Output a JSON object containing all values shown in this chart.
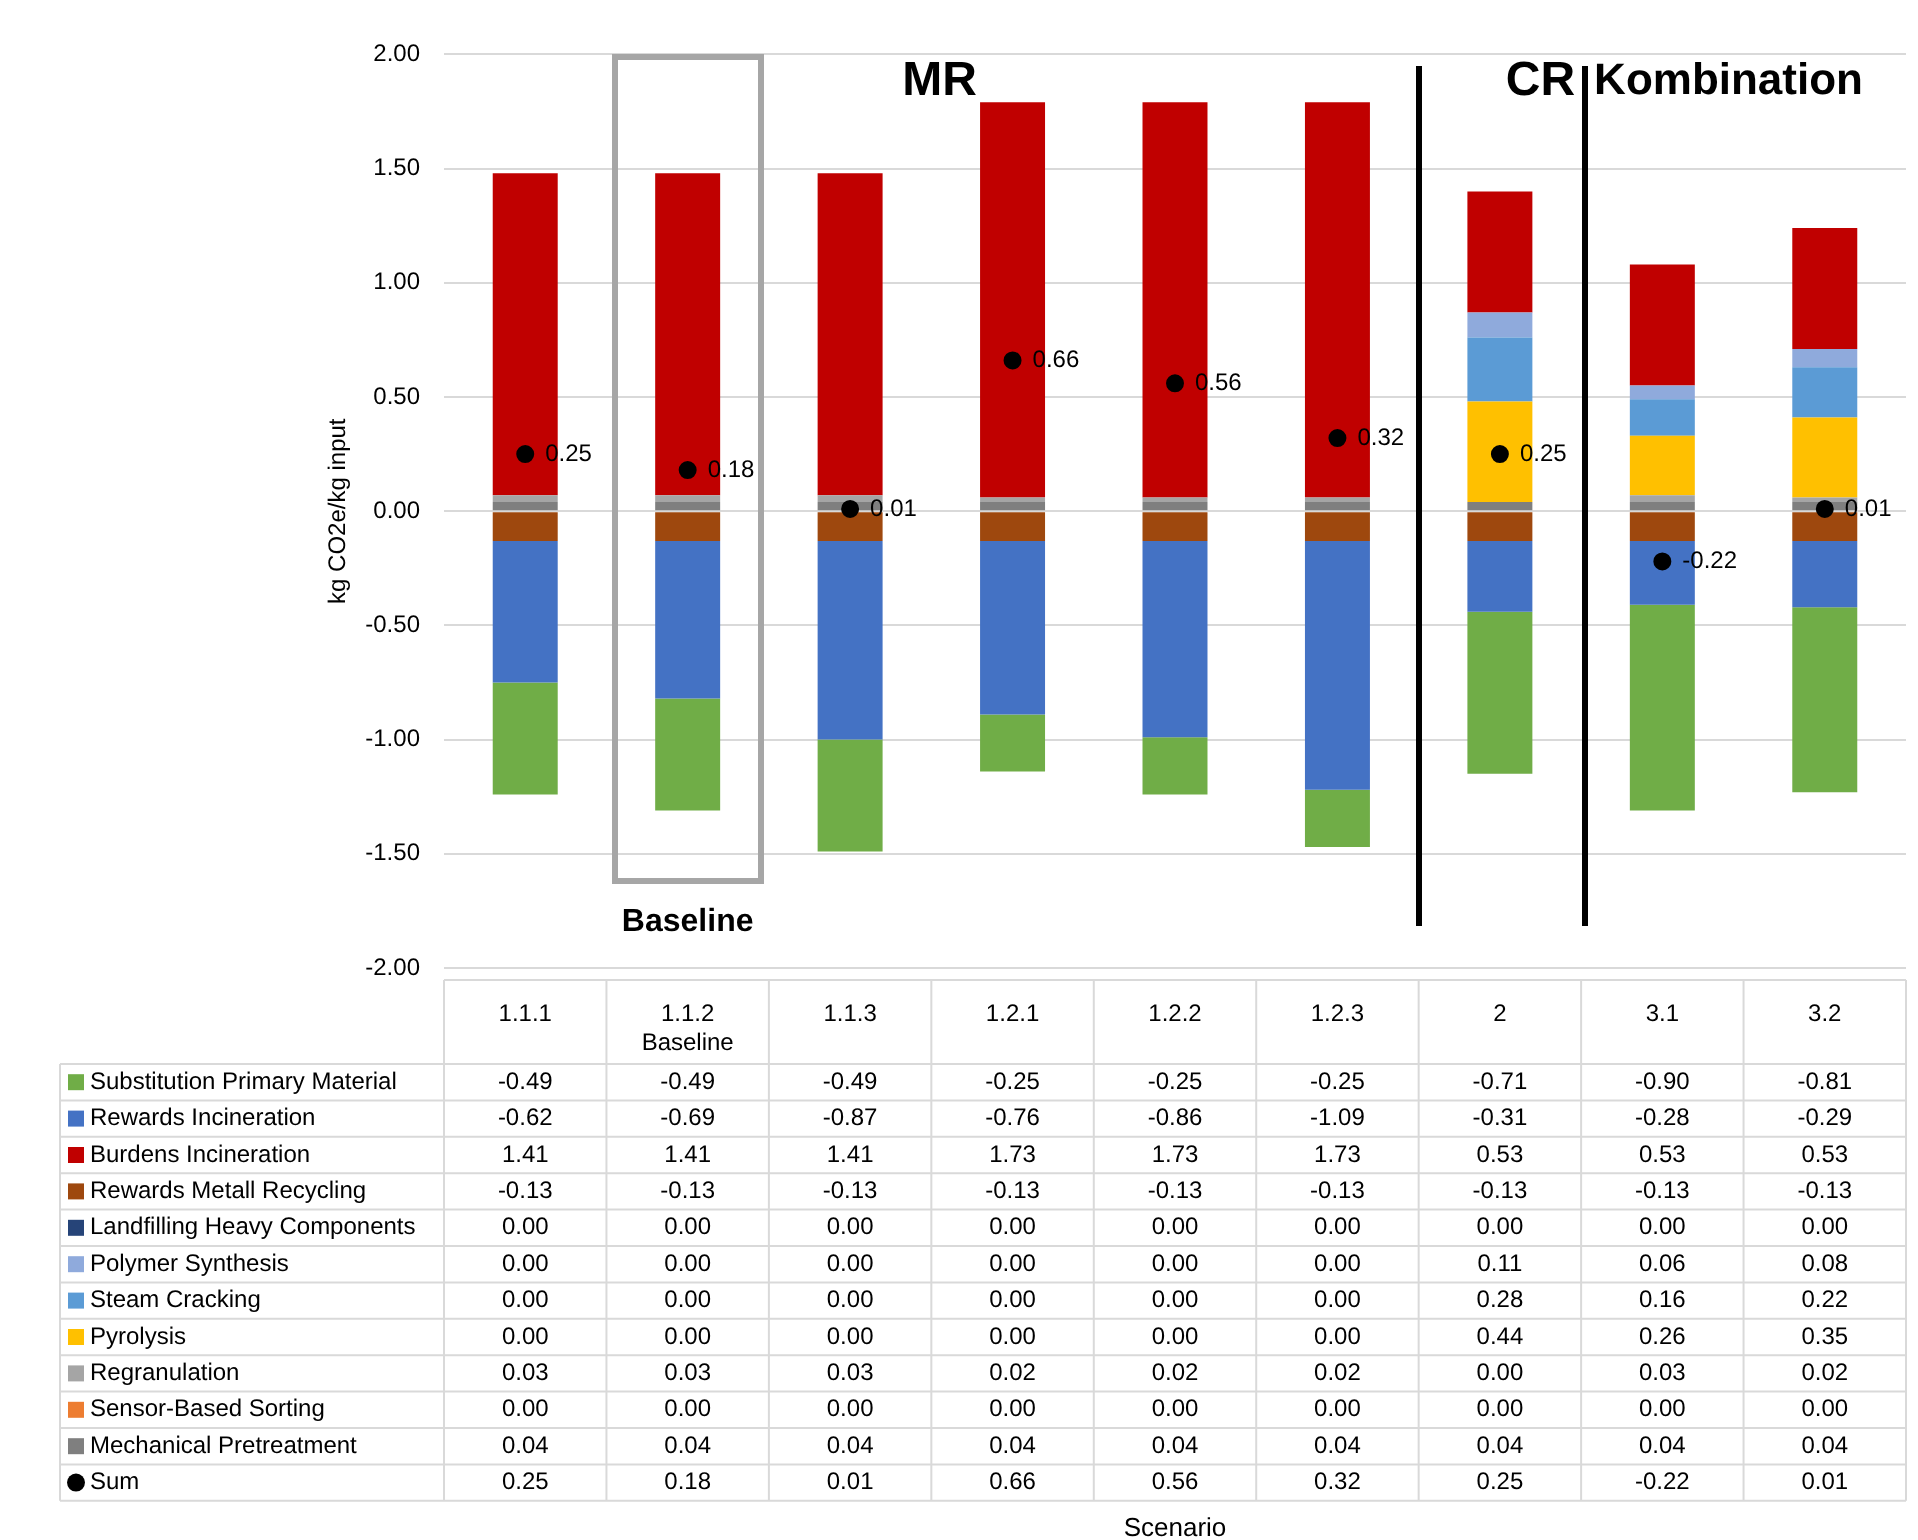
{
  "chart_data": {
    "type": "bar",
    "stacked": true,
    "ylabel": "kg CO2e/kg input",
    "categories": [
      "1.1.1",
      "1.1.2 Baseline",
      "1.1.3",
      "1.2.1",
      "1.2.2",
      "1.2.3",
      "2",
      "3.1",
      "3.2"
    ],
    "ylim": [
      -2,
      2
    ],
    "yticks": [
      {
        "value": -2,
        "label": "-2.00"
      },
      {
        "value": -1.5,
        "label": "-1.50"
      },
      {
        "value": -1,
        "label": "-1.00"
      },
      {
        "value": -0.5,
        "label": "-0.50"
      },
      {
        "value": 0,
        "label": "0.00"
      },
      {
        "value": 0.5,
        "label": "0.50"
      },
      {
        "value": 1,
        "label": "1.00"
      },
      {
        "value": 1.5,
        "label": "1.50"
      },
      {
        "value": 2,
        "label": "2.00"
      }
    ],
    "grid": "y",
    "legend": "bottom",
    "marker": "circle",
    "annotations": [
      "MR",
      "CR",
      "Kombination",
      "Baseline",
      "Scenario"
    ],
    "series": [
      {
        "name": "Mechanical Pretreatment",
        "color": "#7f7f7f",
        "values": [
          0.04,
          0.04,
          0.04,
          0.04,
          0.04,
          0.04,
          0.04,
          0.04,
          0.04
        ],
        "value_labels": [
          "0.04",
          "0.04",
          "0.04",
          "0.04",
          "0.04",
          "0.04",
          "0.04",
          "0.04",
          "0.04"
        ]
      },
      {
        "name": "Sensor-Based Sorting",
        "color": "#ed7d31",
        "values": [
          0,
          0,
          0,
          0,
          0,
          0,
          0,
          0,
          0
        ],
        "value_labels": [
          "0.00",
          "0.00",
          "0.00",
          "0.00",
          "0.00",
          "0.00",
          "0.00",
          "0.00",
          "0.00"
        ]
      },
      {
        "name": "Regranulation",
        "color": "#a5a5a5",
        "values": [
          0.03,
          0.03,
          0.03,
          0.02,
          0.02,
          0.02,
          0,
          0.03,
          0.02
        ],
        "value_labels": [
          "0.03",
          "0.03",
          "0.03",
          "0.02",
          "0.02",
          "0.02",
          "0.00",
          "0.03",
          "0.02"
        ]
      },
      {
        "name": "Pyrolysis",
        "color": "#ffc000",
        "values": [
          0,
          0,
          0,
          0,
          0,
          0,
          0.44,
          0.26,
          0.35
        ],
        "value_labels": [
          "0.00",
          "0.00",
          "0.00",
          "0.00",
          "0.00",
          "0.00",
          "0.44",
          "0.26",
          "0.35"
        ]
      },
      {
        "name": "Steam Cracking",
        "color": "#5b9bd5",
        "values": [
          0,
          0,
          0,
          0,
          0,
          0,
          0.28,
          0.16,
          0.22
        ],
        "value_labels": [
          "0.00",
          "0.00",
          "0.00",
          "0.00",
          "0.00",
          "0.00",
          "0.28",
          "0.16",
          "0.22"
        ]
      },
      {
        "name": "Polymer Synthesis",
        "color": "#8faadc",
        "values": [
          0,
          0,
          0,
          0,
          0,
          0,
          0.11,
          0.06,
          0.08
        ],
        "value_labels": [
          "0.00",
          "0.00",
          "0.00",
          "0.00",
          "0.00",
          "0.00",
          "0.11",
          "0.06",
          "0.08"
        ]
      },
      {
        "name": "Landfilling Heavy Components",
        "color": "#264478",
        "values": [
          0,
          0,
          0,
          0,
          0,
          0,
          0,
          0,
          0
        ],
        "value_labels": [
          "0.00",
          "0.00",
          "0.00",
          "0.00",
          "0.00",
          "0.00",
          "0.00",
          "0.00",
          "0.00"
        ]
      },
      {
        "name": "Rewards Metall Recycling",
        "color": "#9e480e",
        "values": [
          -0.13,
          -0.13,
          -0.13,
          -0.13,
          -0.13,
          -0.13,
          -0.13,
          -0.13,
          -0.13
        ],
        "value_labels": [
          "-0.13",
          "-0.13",
          "-0.13",
          "-0.13",
          "-0.13",
          "-0.13",
          "-0.13",
          "-0.13",
          "-0.13"
        ]
      },
      {
        "name": "Burdens Incineration",
        "color": "#c00000",
        "values": [
          1.41,
          1.41,
          1.41,
          1.73,
          1.73,
          1.73,
          0.53,
          0.53,
          0.53
        ],
        "value_labels": [
          "1.41",
          "1.41",
          "1.41",
          "1.73",
          "1.73",
          "1.73",
          "0.53",
          "0.53",
          "0.53"
        ]
      },
      {
        "name": "Rewards Incineration",
        "color": "#4472c4",
        "values": [
          -0.62,
          -0.69,
          -0.87,
          -0.76,
          -0.86,
          -1.09,
          -0.31,
          -0.28,
          -0.29
        ],
        "value_labels": [
          "-0.62",
          "-0.69",
          "-0.87",
          "-0.76",
          "-0.86",
          "-1.09",
          "-0.31",
          "-0.28",
          "-0.29"
        ]
      },
      {
        "name": "Substitution Primary Material",
        "color": "#70ad47",
        "values": [
          -0.49,
          -0.49,
          -0.49,
          -0.25,
          -0.25,
          -0.25,
          -0.71,
          -0.9,
          -0.81
        ],
        "value_labels": [
          "-0.49",
          "-0.49",
          "-0.49",
          "-0.25",
          "-0.25",
          "-0.25",
          "-0.71",
          "-0.90",
          "-0.81"
        ]
      },
      {
        "name": "Sum",
        "type": "scatter",
        "color": "#000000",
        "values": [
          0.25,
          0.18,
          0.01,
          0.66,
          0.56,
          0.32,
          0.25,
          -0.22,
          0.01
        ],
        "value_labels": [
          "0.25",
          "0.18",
          "0.01",
          "0.66",
          "0.56",
          "0.32",
          "0.25",
          "-0.22",
          "0.01"
        ]
      }
    ]
  }
}
